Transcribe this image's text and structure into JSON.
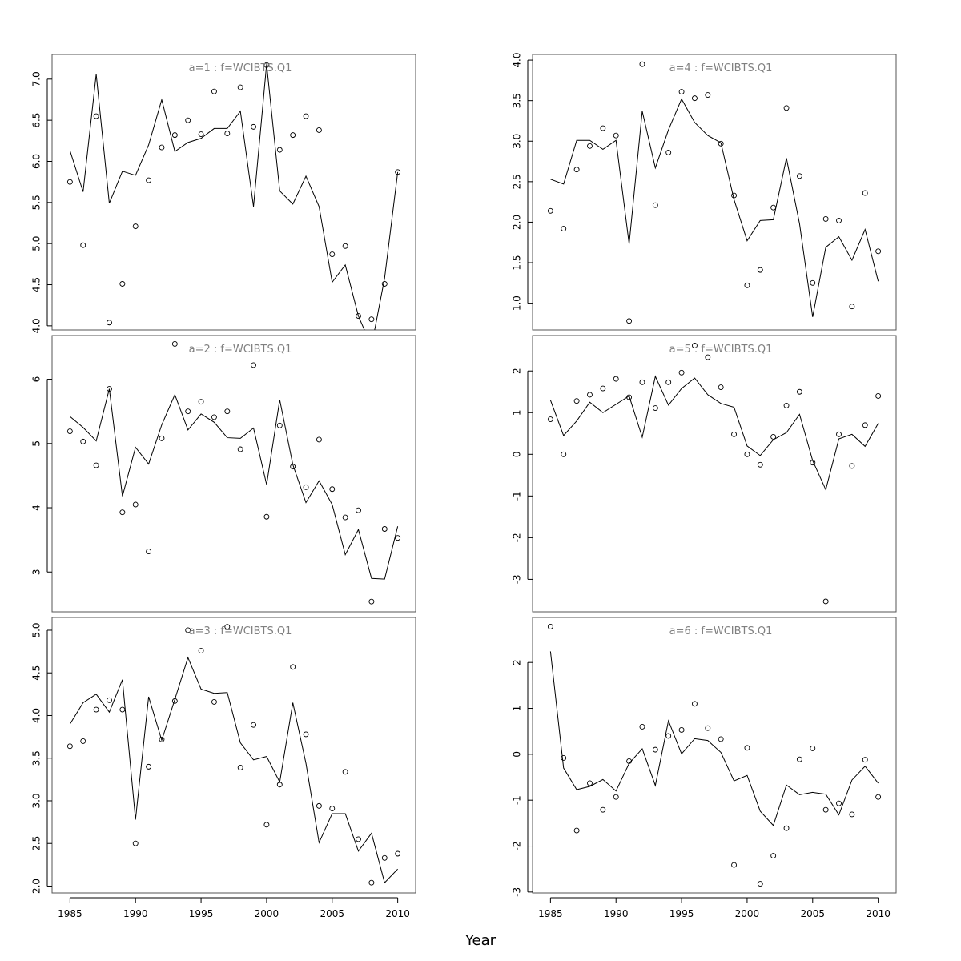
{
  "xlabel": "Year",
  "colors": {
    "line": "#000000",
    "points": "#000000",
    "frame": "#555555",
    "title": "#808080"
  },
  "chart_data": [
    {
      "type": "line",
      "title": "a=1  :  f=WCIBTS.Q1",
      "x": [
        1985,
        1986,
        1987,
        1988,
        1989,
        1990,
        1991,
        1992,
        1993,
        1994,
        1995,
        1996,
        1997,
        1998,
        1999,
        2000,
        2001,
        2002,
        2003,
        2004,
        2005,
        2006,
        2007,
        2008,
        2009,
        2010
      ],
      "series": [
        {
          "kind": "line",
          "values": [
            6.13,
            5.63,
            7.06,
            5.49,
            5.88,
            5.83,
            6.2,
            6.75,
            6.12,
            6.23,
            6.28,
            6.4,
            6.4,
            6.61,
            5.45,
            7.18,
            5.64,
            5.48,
            5.82,
            5.45,
            4.53,
            4.74,
            4.12,
            3.75,
            4.58,
            5.87
          ]
        },
        {
          "kind": "points",
          "values": [
            5.75,
            4.98,
            6.55,
            4.04,
            4.51,
            5.21,
            5.77,
            6.17,
            6.32,
            6.5,
            6.33,
            6.85,
            6.34,
            6.9,
            6.42,
            7.17,
            6.14,
            6.32,
            6.55,
            6.38,
            4.87,
            4.97,
            4.12,
            4.08,
            4.51,
            5.87
          ]
        }
      ],
      "ylim": [
        3.95,
        7.3
      ],
      "yticks": [
        4.0,
        4.5,
        5.0,
        5.5,
        6.0,
        6.5,
        7.0
      ],
      "ytick_labels": [
        "4.0",
        "4.5",
        "5.0",
        "5.5",
        "6.0",
        "6.5",
        "7.0"
      ],
      "xtick_labels": []
    },
    {
      "type": "line",
      "title": "a=2  :  f=WCIBTS.Q1",
      "x": [
        1985,
        1986,
        1987,
        1988,
        1989,
        1990,
        1991,
        1992,
        1993,
        1994,
        1995,
        1996,
        1997,
        1998,
        1999,
        2000,
        2001,
        2002,
        2003,
        2004,
        2005,
        2006,
        2007,
        2008,
        2009,
        2010
      ],
      "series": [
        {
          "kind": "line",
          "values": [
            5.42,
            5.25,
            5.04,
            5.85,
            4.18,
            4.94,
            4.68,
            5.29,
            5.76,
            5.21,
            5.46,
            5.33,
            5.09,
            5.08,
            5.24,
            4.36,
            5.68,
            4.67,
            4.08,
            4.42,
            4.05,
            3.27,
            3.66,
            2.9,
            2.89,
            3.71
          ]
        },
        {
          "kind": "points",
          "values": [
            5.19,
            5.03,
            4.66,
            5.85,
            3.93,
            4.05,
            3.32,
            5.08,
            6.55,
            5.5,
            5.65,
            5.41,
            5.5,
            4.91,
            6.22,
            3.86,
            5.28,
            4.64,
            4.32,
            5.06,
            4.29,
            3.85,
            3.96,
            2.54,
            3.67,
            3.53
          ]
        }
      ],
      "ylim": [
        2.38,
        6.68
      ],
      "yticks": [
        3,
        4,
        5,
        6
      ],
      "ytick_labels": [
        "3",
        "4",
        "5",
        "6"
      ],
      "xtick_labels": []
    },
    {
      "type": "line",
      "title": "a=3  :  f=WCIBTS.Q1",
      "x": [
        1985,
        1986,
        1987,
        1988,
        1989,
        1990,
        1991,
        1992,
        1993,
        1994,
        1995,
        1996,
        1997,
        1998,
        1999,
        2000,
        2001,
        2002,
        2003,
        2004,
        2005,
        2006,
        2007,
        2008,
        2009,
        2010
      ],
      "series": [
        {
          "kind": "line",
          "values": [
            3.9,
            4.15,
            4.25,
            4.04,
            4.42,
            2.78,
            4.22,
            3.71,
            4.19,
            4.68,
            4.31,
            4.26,
            4.27,
            3.68,
            3.48,
            3.52,
            3.22,
            4.15,
            3.44,
            2.51,
            2.85,
            2.85,
            2.41,
            2.62,
            2.04,
            2.2
          ]
        },
        {
          "kind": "points",
          "values": [
            3.64,
            3.7,
            4.07,
            4.18,
            4.07,
            2.5,
            3.4,
            3.72,
            4.17,
            5.0,
            4.76,
            4.16,
            5.04,
            3.39,
            3.89,
            2.72,
            3.19,
            4.57,
            3.78,
            2.94,
            2.91,
            3.34,
            2.55,
            2.04,
            2.33,
            2.38
          ]
        }
      ],
      "ylim": [
        1.92,
        5.15
      ],
      "yticks": [
        2.0,
        2.5,
        3.0,
        3.5,
        4.0,
        4.5,
        5.0
      ],
      "ytick_labels": [
        "2.0",
        "2.5",
        "3.0",
        "3.5",
        "4.0",
        "4.5",
        "5.0"
      ],
      "xtick_labels": [
        "1985",
        "1990",
        "1995",
        "2000",
        "2005",
        "2010"
      ]
    },
    {
      "type": "line",
      "title": "a=4  :  f=WCIBTS.Q1",
      "x": [
        1985,
        1986,
        1987,
        1988,
        1989,
        1990,
        1991,
        1992,
        1993,
        1994,
        1995,
        1996,
        1997,
        1998,
        1999,
        2000,
        2001,
        2002,
        2003,
        2004,
        2005,
        2006,
        2007,
        2008,
        2009,
        2010
      ],
      "series": [
        {
          "kind": "line",
          "values": [
            2.53,
            2.47,
            3.01,
            3.01,
            2.9,
            3.01,
            1.73,
            3.37,
            2.67,
            3.14,
            3.52,
            3.23,
            3.07,
            2.98,
            2.28,
            1.77,
            2.02,
            2.03,
            2.79,
            1.98,
            0.83,
            1.69,
            1.82,
            1.53,
            1.91,
            1.27
          ]
        },
        {
          "kind": "points",
          "values": [
            2.14,
            1.92,
            2.65,
            2.94,
            3.16,
            3.07,
            0.78,
            3.95,
            2.21,
            2.86,
            3.61,
            3.53,
            3.57,
            2.97,
            2.33,
            1.22,
            1.41,
            2.18,
            3.41,
            2.57,
            1.25,
            2.04,
            2.02,
            0.96,
            2.36,
            1.64
          ]
        }
      ],
      "ylim": [
        0.67,
        4.07
      ],
      "yticks": [
        1.0,
        1.5,
        2.0,
        2.5,
        3.0,
        3.5,
        4.0
      ],
      "ytick_labels": [
        "1.0",
        "1.5",
        "2.0",
        "2.5",
        "3.0",
        "3.5",
        "4.0"
      ],
      "xtick_labels": []
    },
    {
      "type": "line",
      "title": "a=5  :  f=WCIBTS.Q1",
      "x": [
        1985,
        1986,
        1987,
        1988,
        1989,
        1990,
        1991,
        1992,
        1993,
        1994,
        1995,
        1996,
        1997,
        1998,
        1999,
        2000,
        2001,
        2002,
        2003,
        2004,
        2005,
        2006,
        2007,
        2008,
        2009,
        2010
      ],
      "series": [
        {
          "kind": "line",
          "values": [
            1.3,
            0.45,
            0.8,
            1.25,
            1.0,
            1.2,
            1.4,
            0.41,
            1.87,
            1.18,
            1.58,
            1.83,
            1.43,
            1.22,
            1.13,
            0.2,
            -0.03,
            0.35,
            0.52,
            0.96,
            -0.15,
            -0.85,
            0.37,
            0.48,
            0.19,
            0.74
          ]
        },
        {
          "kind": "points",
          "values": [
            0.84,
            0.0,
            1.28,
            1.43,
            1.58,
            1.81,
            1.37,
            1.73,
            1.11,
            1.73,
            1.96,
            2.61,
            2.33,
            1.61,
            0.48,
            0.0,
            -0.25,
            0.42,
            1.17,
            1.5,
            -0.2,
            -3.53,
            0.48,
            -0.28,
            0.7,
            1.4
          ]
        }
      ],
      "ylim": [
        -3.78,
        2.85
      ],
      "yticks": [
        -3,
        -2,
        -1,
        0,
        1,
        2
      ],
      "ytick_labels": [
        "-3",
        "-2",
        "-1",
        "0",
        "1",
        "2"
      ],
      "xtick_labels": []
    },
    {
      "type": "line",
      "title": "a=6  :  f=WCIBTS.Q1",
      "x": [
        1985,
        1986,
        1987,
        1988,
        1989,
        1990,
        1991,
        1992,
        1993,
        1994,
        1995,
        1996,
        1997,
        1998,
        1999,
        2000,
        2001,
        2002,
        2003,
        2004,
        2005,
        2006,
        2007,
        2008,
        2009,
        2010
      ],
      "series": [
        {
          "kind": "line",
          "values": [
            2.24,
            -0.3,
            -0.77,
            -0.7,
            -0.55,
            -0.8,
            -0.2,
            0.12,
            -0.68,
            0.73,
            0.01,
            0.34,
            0.3,
            0.04,
            -0.58,
            -0.46,
            -1.24,
            -1.55,
            -0.67,
            -0.88,
            -0.83,
            -0.87,
            -1.32,
            -0.56,
            -0.26,
            -0.63
          ]
        },
        {
          "kind": "points",
          "values": [
            2.78,
            -0.08,
            -1.66,
            -0.63,
            -1.21,
            -0.93,
            -0.15,
            0.6,
            0.1,
            0.4,
            0.53,
            1.1,
            0.57,
            0.33,
            -2.41,
            0.14,
            -2.82,
            -2.21,
            -1.61,
            -0.11,
            0.13,
            -1.21,
            -1.07,
            -1.31,
            -0.12,
            -0.93
          ]
        }
      ],
      "ylim": [
        -3.02,
        2.98
      ],
      "yticks": [
        -3,
        -2,
        -1,
        0,
        1,
        2
      ],
      "ytick_labels": [
        "-3",
        "-2",
        "-1",
        "0",
        "1",
        "2"
      ],
      "xtick_labels": [
        "1985",
        "1990",
        "1995",
        "2000",
        "2005",
        "2010"
      ]
    }
  ]
}
